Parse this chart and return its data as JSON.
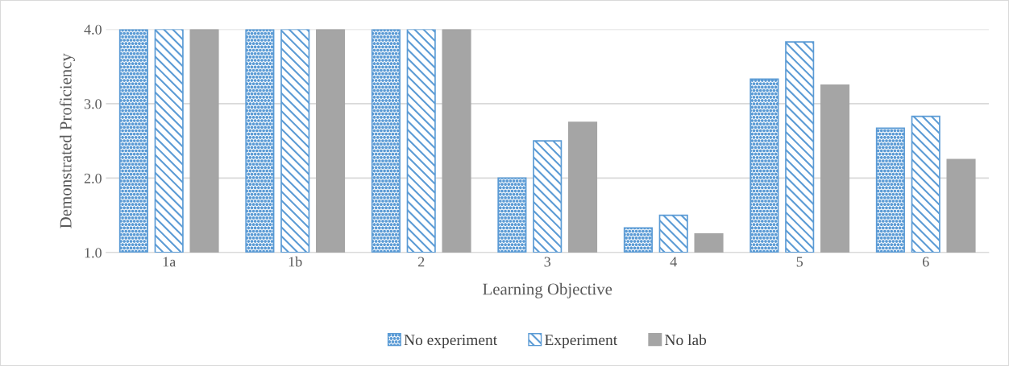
{
  "chart_data": {
    "type": "bar",
    "xlabel": "Learning Objective",
    "ylabel": "Demonstrated Proficiency",
    "categories": [
      "1a",
      "1b",
      "2",
      "3",
      "4",
      "5",
      "6"
    ],
    "series": [
      {
        "name": "No experiment",
        "color": "#5b9bd5",
        "values": [
          4.0,
          4.0,
          4.0,
          2.0,
          1.33,
          3.33,
          2.67
        ]
      },
      {
        "name": "Experiment",
        "color": "#5b9bd5",
        "values": [
          4.0,
          4.0,
          4.0,
          2.5,
          1.5,
          3.83,
          2.83
        ]
      },
      {
        "name": "No lab",
        "color": "#a5a5a5",
        "values": [
          4.0,
          4.0,
          4.0,
          2.75,
          1.25,
          3.25,
          2.25
        ]
      }
    ],
    "ylim": [
      1.0,
      4.0
    ],
    "yticks": [
      {
        "value": 1.0,
        "label": "1.0"
      },
      {
        "value": 2.0,
        "label": "2.0"
      },
      {
        "value": 3.0,
        "label": "3.0"
      },
      {
        "value": 4.0,
        "label": "4.0"
      }
    ],
    "grid": "y",
    "legend": "bottom"
  }
}
